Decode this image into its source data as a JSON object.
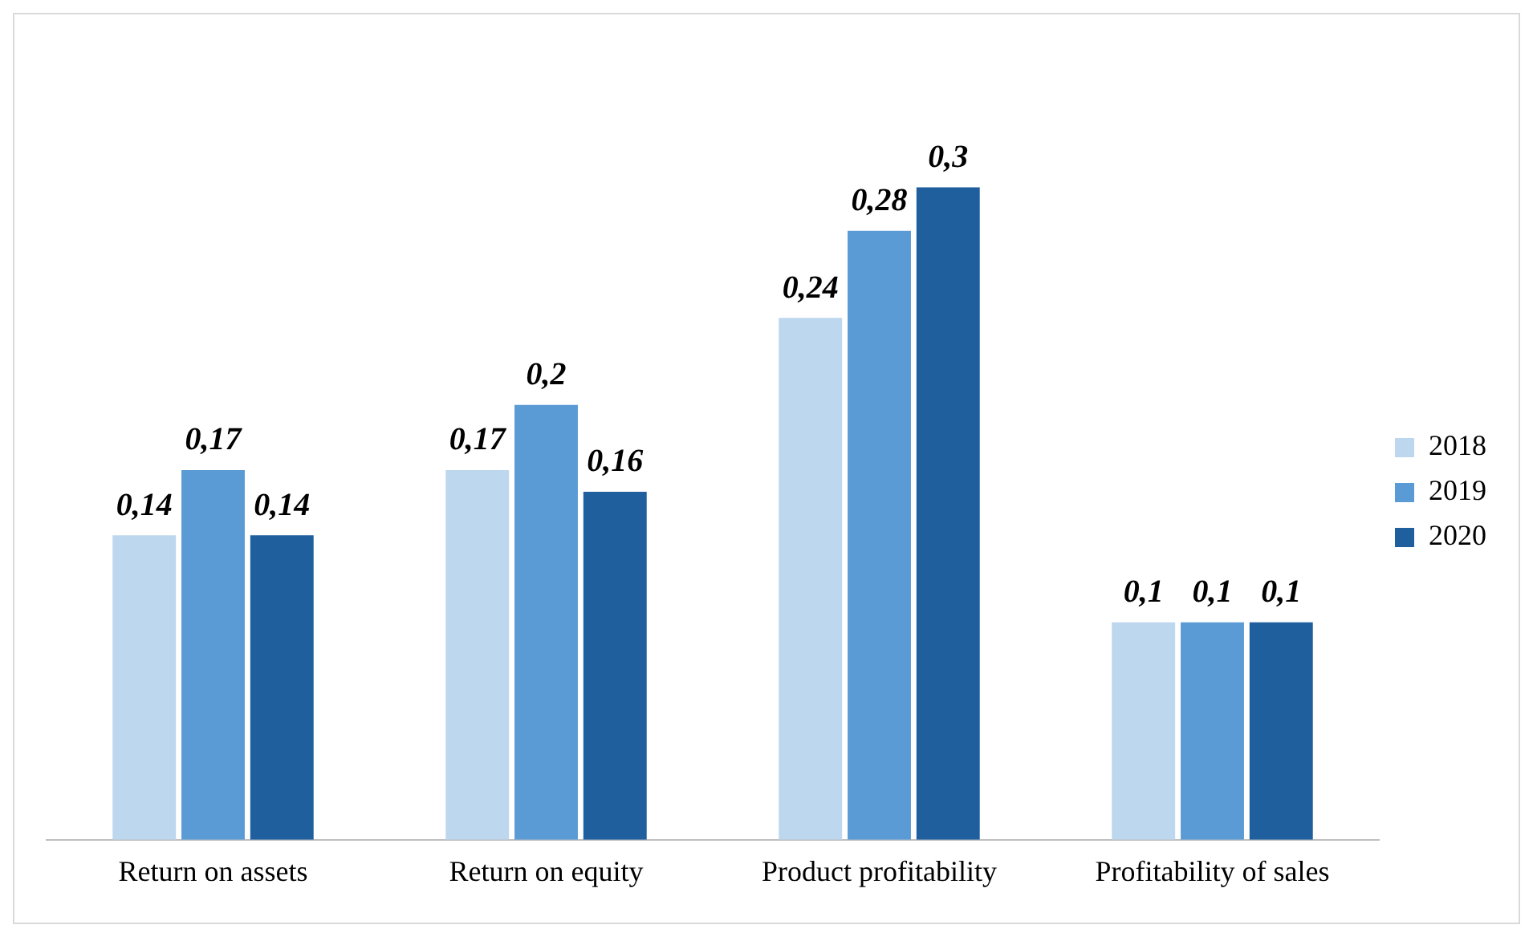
{
  "chart_data": {
    "type": "bar",
    "categories": [
      "Return on assets",
      "Return on equity",
      "Product profitability",
      "Profitability of sales"
    ],
    "series": [
      {
        "name": "2018",
        "color": "#bdd7ee",
        "values": [
          0.14,
          0.17,
          0.24,
          0.1
        ],
        "value_labels": [
          "0,14",
          "0,17",
          "0,24",
          "0,1"
        ]
      },
      {
        "name": "2019",
        "color": "#5b9bd5",
        "values": [
          0.17,
          0.2,
          0.28,
          0.1
        ],
        "value_labels": [
          "0,17",
          "0,2",
          "0,28",
          "0,1"
        ]
      },
      {
        "name": "2020",
        "color": "#1f5f9e",
        "values": [
          0.14,
          0.16,
          0.3,
          0.1
        ],
        "value_labels": [
          "0,14",
          "0,16",
          "0,3",
          "0,1"
        ]
      }
    ],
    "legend": "right",
    "grid": false
  }
}
